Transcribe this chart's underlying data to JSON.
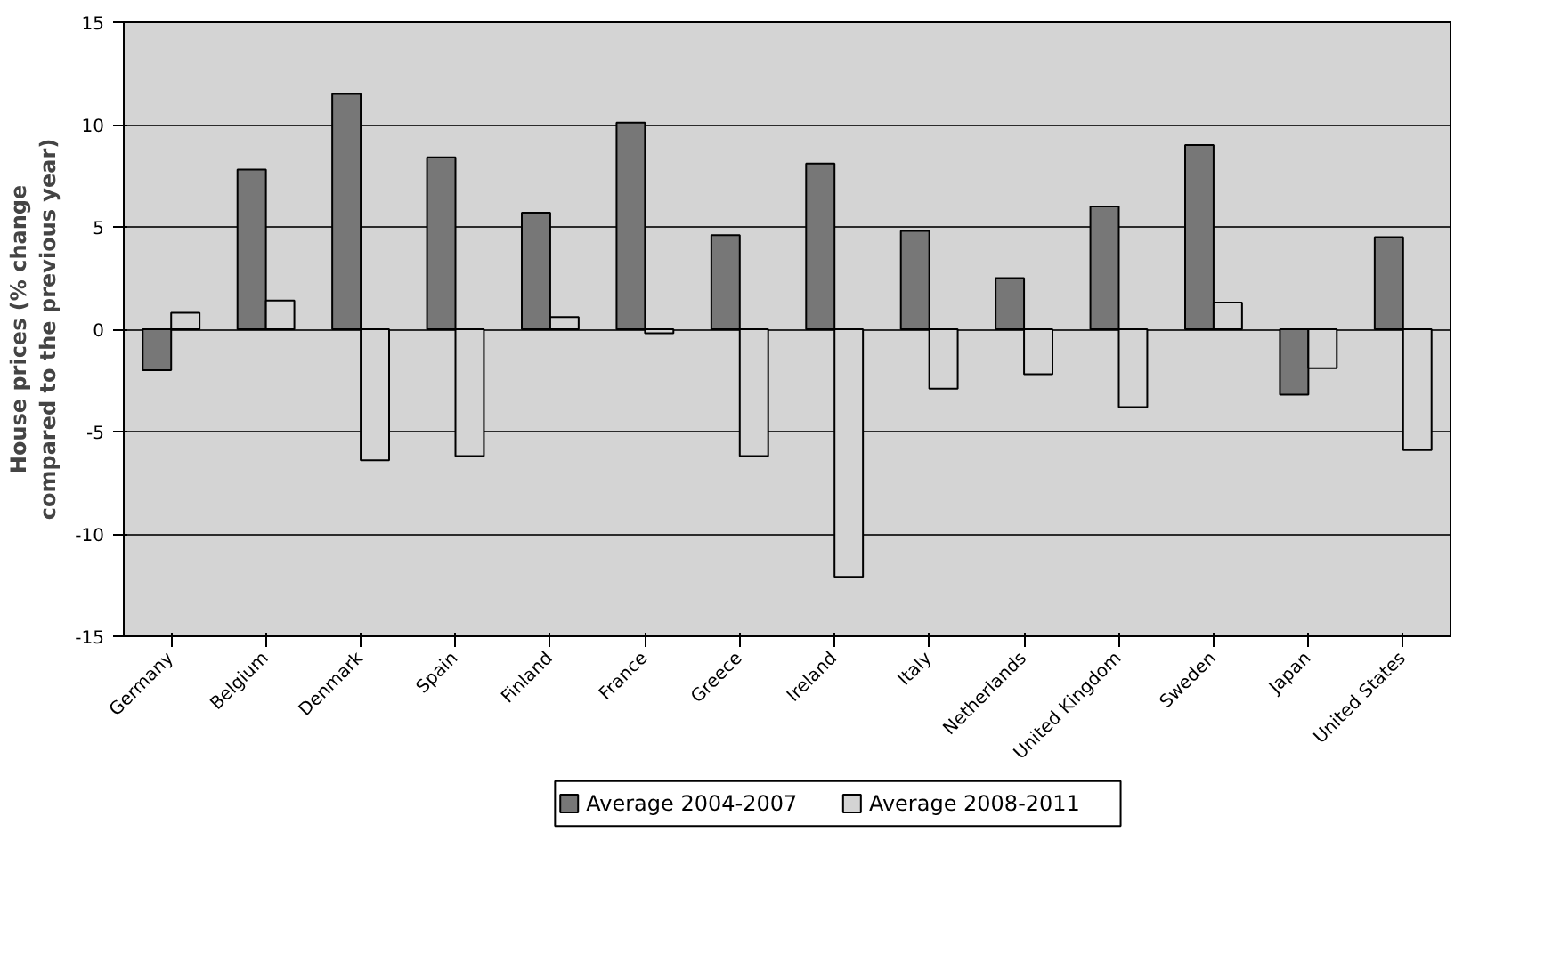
{
  "chart_data": {
    "type": "bar",
    "ylabel": "House prices (% change compared to the previous year)",
    "categories": [
      "Germany",
      "Belgium",
      "Denmark",
      "Spain",
      "Finland",
      "France",
      "Greece",
      "Ireland",
      "Italy",
      "Netherlands",
      "United Kingdom",
      "Sweden",
      "Japan",
      "United States"
    ],
    "series": [
      {
        "name": "Average 2004-2007",
        "color": "#777777",
        "values": [
          -2.0,
          7.8,
          11.5,
          8.4,
          5.7,
          10.1,
          4.6,
          8.1,
          4.8,
          2.5,
          6.0,
          9.0,
          -3.2,
          4.5
        ]
      },
      {
        "name": "Average 2008-2011",
        "color": "#d4d4d4",
        "values": [
          0.8,
          1.4,
          -6.4,
          -6.2,
          0.6,
          -0.2,
          -6.2,
          -12.1,
          -2.9,
          -2.2,
          -3.8,
          1.3,
          -1.9,
          -5.9
        ]
      }
    ],
    "ylim": [
      -15,
      15
    ],
    "yticks": [
      -15,
      -10,
      -5,
      0,
      5,
      10,
      15
    ],
    "grid": "y",
    "legend": "bottom"
  }
}
